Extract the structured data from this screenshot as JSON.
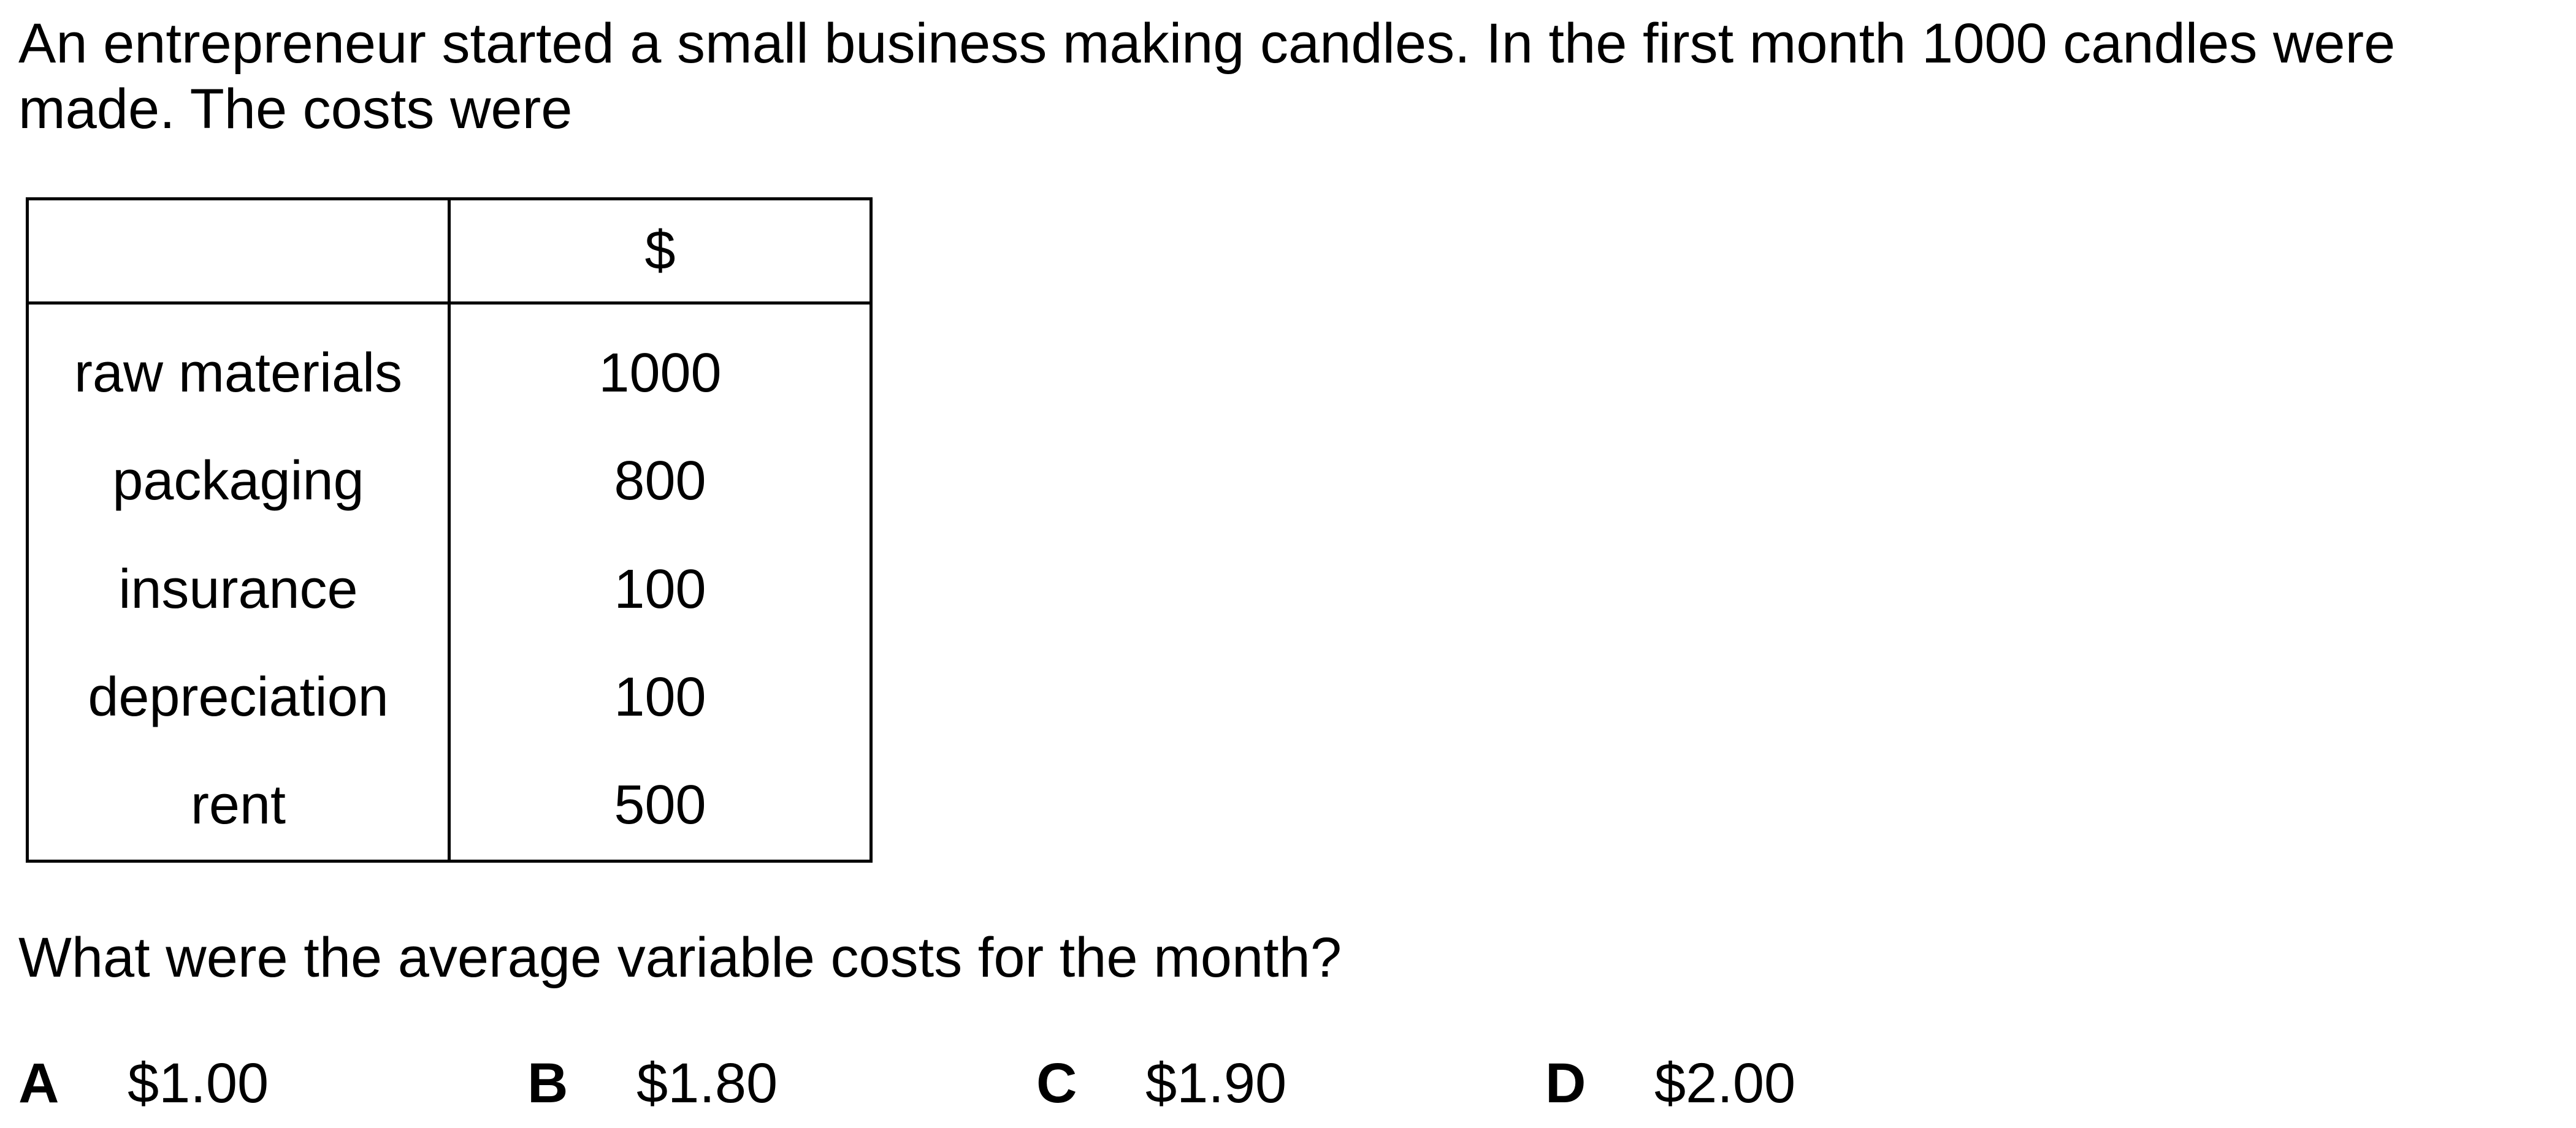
{
  "intro": {
    "line1": "An entrepreneur started a small business making candles. In the first month 1000 candles were",
    "line2": "made. The costs were"
  },
  "table": {
    "header": [
      "",
      "$"
    ],
    "rows": [
      {
        "item": "raw materials",
        "value": "1000"
      },
      {
        "item": "packaging",
        "value": "800"
      },
      {
        "item": "insurance",
        "value": "100"
      },
      {
        "item": "depreciation",
        "value": "100"
      },
      {
        "item": "rent",
        "value": "500"
      }
    ]
  },
  "question": "What were the average variable costs for the month?",
  "options": [
    {
      "letter": "A",
      "text": "$1.00"
    },
    {
      "letter": "B",
      "text": "$1.80"
    },
    {
      "letter": "C",
      "text": "$1.90"
    },
    {
      "letter": "D",
      "text": "$2.00"
    }
  ]
}
